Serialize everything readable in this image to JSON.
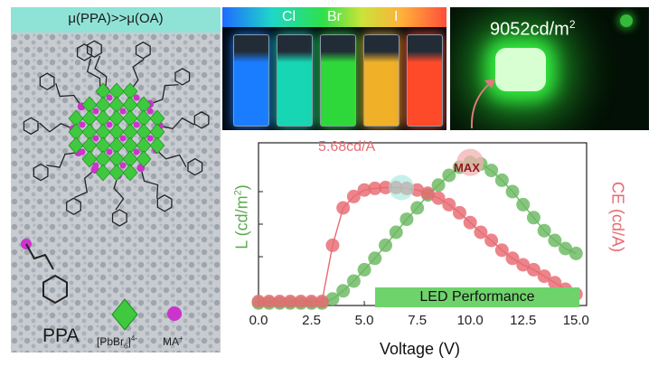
{
  "left_panel": {
    "header": "μ(PPA)>>μ(OA)",
    "legend_ppa": "PPA",
    "legend_pbbr6": "[PbBr",
    "legend_pbbr6_sub": "6",
    "legend_pbbr6_sup": "]",
    "legend_pbbr6_charge": "4-",
    "legend_ma": "MA",
    "legend_ma_sup": "+",
    "colors": {
      "header_bar": "#8fe3d6",
      "octahedron": "#3ec93e",
      "ma_ion": "#cc33cc",
      "bond": "#222222"
    }
  },
  "vials_panel": {
    "labels": [
      "Cl",
      "Br",
      "I"
    ],
    "vial_colors": [
      "#1a7dff",
      "#16d6b4",
      "#2ed83a",
      "#f0b028",
      "#ff4a2a"
    ]
  },
  "led_photo": {
    "caption": "9052cd/m",
    "caption_sup": "2",
    "glow_color": "#37ff45"
  },
  "chart_data": {
    "type": "line",
    "xlabel": "Voltage (V)",
    "ylabel_left": "L (cd/m",
    "ylabel_left_sup": "2",
    "ylabel_left_close": ")",
    "ylabel_right": "CE (cd/A)",
    "xlim": [
      0,
      15.5
    ],
    "ylim": [
      0,
      1
    ],
    "x_ticks": [
      "0.0",
      "2.5",
      "5.0",
      "7.5",
      "10.0",
      "12.5",
      "15.0"
    ],
    "annotations": {
      "ce_peak": "5.68cd/A",
      "max": "MAX",
      "banner": "LED Performance"
    },
    "series": [
      {
        "color": "#6ab860",
        "x": [
          0,
          0.5,
          1,
          1.5,
          2,
          2.5,
          3,
          3.5,
          4,
          4.5,
          5,
          5.5,
          6,
          6.5,
          7,
          7.5,
          8,
          8.5,
          9,
          9.5,
          10,
          10.5,
          11,
          11.5,
          12,
          12.5,
          13,
          13.5,
          14,
          14.5,
          15
        ],
        "values": [
          0.015,
          0.015,
          0.015,
          0.015,
          0.015,
          0.015,
          0.015,
          0.04,
          0.09,
          0.15,
          0.22,
          0.29,
          0.37,
          0.45,
          0.53,
          0.6,
          0.68,
          0.74,
          0.8,
          0.85,
          0.88,
          0.87,
          0.83,
          0.77,
          0.7,
          0.62,
          0.54,
          0.46,
          0.4,
          0.35,
          0.32
        ]
      },
      {
        "color": "#e86a72",
        "x": [
          0,
          0.5,
          1,
          1.5,
          2,
          2.5,
          3,
          3.5,
          4,
          4.5,
          5,
          5.5,
          6,
          6.5,
          7,
          7.5,
          8,
          8.5,
          9,
          9.5,
          10,
          10.5,
          11,
          11.5,
          12,
          12.5,
          13,
          13.5,
          14,
          14.5,
          15
        ],
        "values": [
          0.025,
          0.025,
          0.025,
          0.025,
          0.025,
          0.025,
          0.025,
          0.37,
          0.6,
          0.67,
          0.71,
          0.72,
          0.725,
          0.725,
          0.72,
          0.71,
          0.69,
          0.66,
          0.62,
          0.57,
          0.51,
          0.45,
          0.4,
          0.34,
          0.29,
          0.25,
          0.22,
          0.18,
          0.14,
          0.1,
          0.07
        ]
      }
    ]
  }
}
